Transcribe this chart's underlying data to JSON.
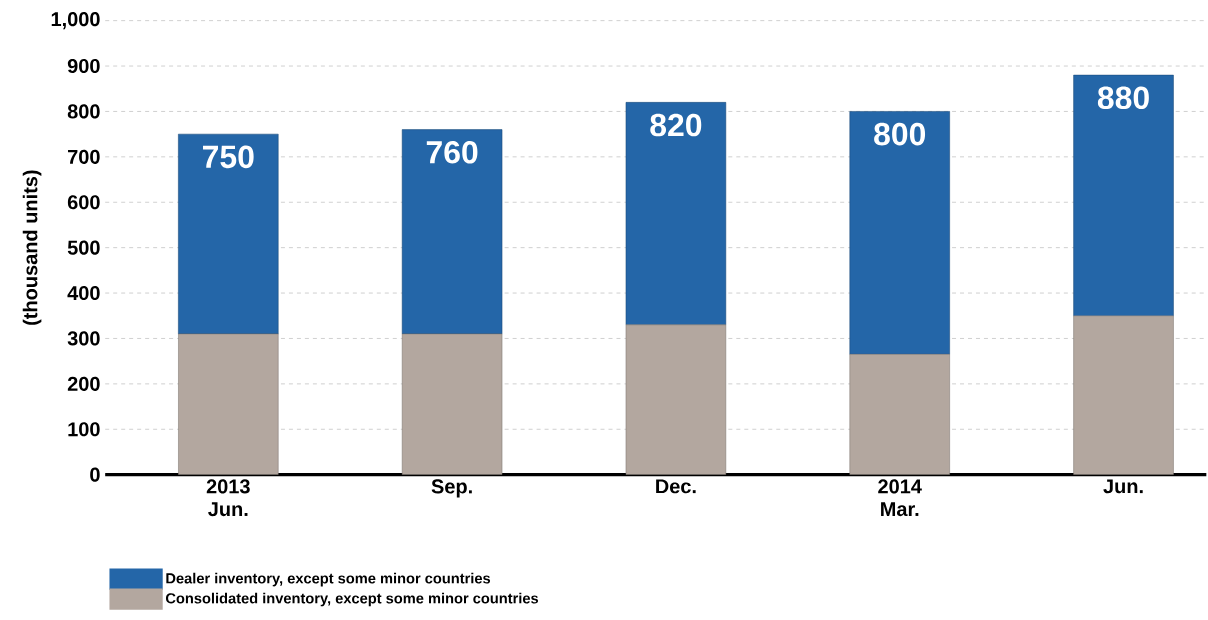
{
  "chart_data": {
    "type": "bar",
    "stacked": true,
    "ylabel": "(thousand units)",
    "categories": [
      "2013 Jun.",
      "Sep.",
      "Dec.",
      "2014 Mar.",
      "Jun."
    ],
    "series": [
      {
        "name": "Consolidated inventory, except some minor countries",
        "color": "#b3a79f",
        "values": [
          310,
          310,
          330,
          265,
          350
        ]
      },
      {
        "name": "Dealer inventory, except some minor countries",
        "color": "#2466a8",
        "values": [
          440,
          450,
          490,
          535,
          530
        ]
      }
    ],
    "totals": [
      "750",
      "760",
      "820",
      "800",
      "880"
    ],
    "ylim": [
      0,
      1000
    ],
    "yticks": [
      0,
      100,
      200,
      300,
      400,
      500,
      600,
      700,
      800,
      900,
      {
        "value": 1000,
        "label": "1,000"
      }
    ],
    "grid": "y",
    "legend": "bottom left"
  }
}
